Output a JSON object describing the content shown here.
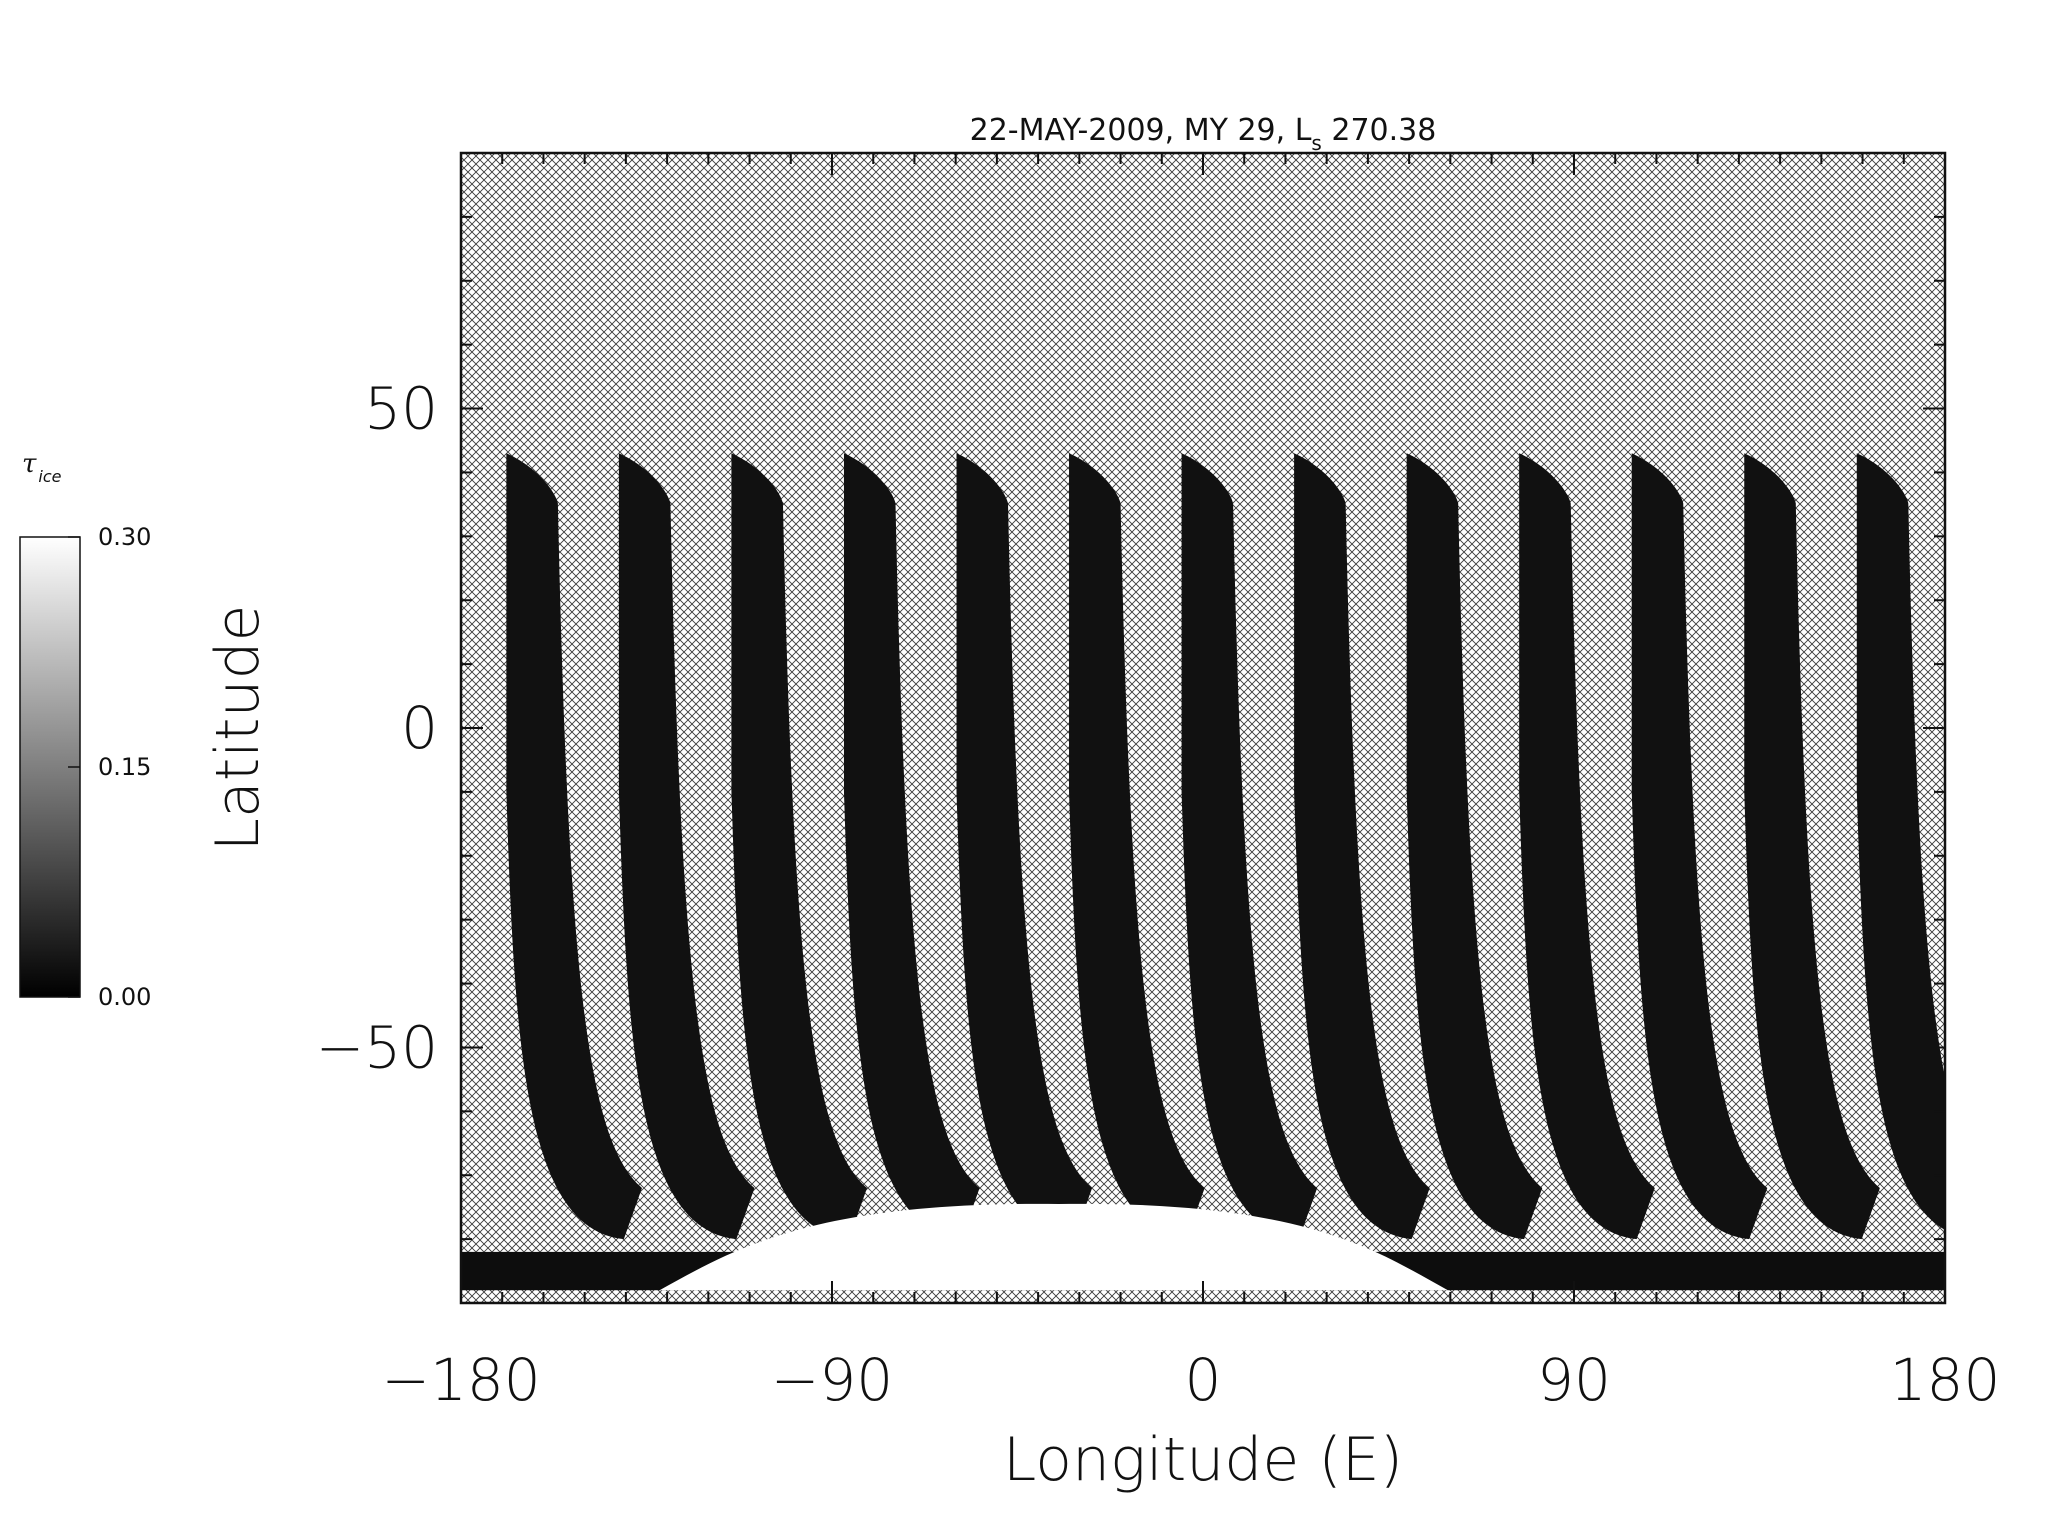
{
  "chart_data": {
    "type": "heatmap",
    "title": "22-MAY-2009, MY 29,  L",
    "title_subscript": "s",
    "title_suffix": " 270.38",
    "xlabel": "Longitude (E)",
    "ylabel": "Latitude",
    "xlim": [
      -180,
      180
    ],
    "ylim": [
      -90,
      90
    ],
    "x_ticks": [
      -180,
      -90,
      0,
      90,
      180
    ],
    "x_tick_labels": [
      "−180",
      "−90",
      "0",
      "90",
      "180"
    ],
    "y_ticks": [
      -50,
      0,
      50
    ],
    "y_tick_labels": [
      "−50",
      "0",
      "50"
    ],
    "x_minor_step": 10,
    "y_minor_step": 10,
    "no_data_pattern": "crosshatch",
    "colorbar": {
      "label": "τ",
      "label_sub": "ice",
      "range": [
        0.0,
        0.3
      ],
      "ticks": [
        0.0,
        0.15,
        0.3
      ],
      "tick_labels": [
        "0.00",
        "0.15",
        "0.30"
      ],
      "colormap": "grayscale",
      "position": "left"
    },
    "swaths": {
      "count": 13,
      "first_top_lon": -169,
      "lon_spacing": 27.3,
      "lat_top": 43,
      "lat_bottom": -80,
      "typical_value": 0.02
    },
    "south_polar_cap": {
      "lon_range": [
        -110,
        40
      ],
      "lat_top": -74,
      "value": 0.3
    }
  }
}
